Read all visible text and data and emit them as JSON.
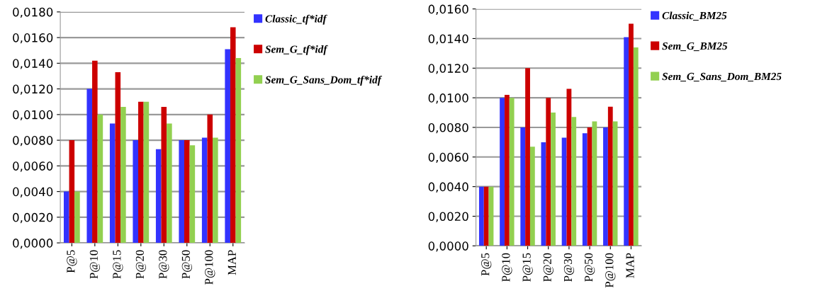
{
  "chart_data": [
    {
      "type": "bar",
      "categories": [
        "P@5",
        "P@10",
        "P@15",
        "P@20",
        "P@30",
        "P@50",
        "P@100",
        "MAP"
      ],
      "series": [
        {
          "name": "Classic_tf*idf",
          "color": "#3333ff",
          "values": [
            0.004,
            0.012,
            0.0093,
            0.008,
            0.0073,
            0.008,
            0.0082,
            0.0151
          ]
        },
        {
          "name": "Sem_G_tf*idf",
          "color": "#cc0000",
          "values": [
            0.008,
            0.0142,
            0.0133,
            0.011,
            0.0106,
            0.008,
            0.01,
            0.0168
          ]
        },
        {
          "name": "Sem_G_Sans_Dom_tf*idf",
          "color": "#92d050",
          "values": [
            0.004,
            0.01,
            0.0106,
            0.011,
            0.0093,
            0.0076,
            0.0082,
            0.0144
          ]
        }
      ],
      "ylim": [
        0,
        0.018
      ],
      "yticks": [
        {
          "value": 0,
          "label": "0,0000"
        },
        {
          "value": 0.002,
          "label": "0,0020"
        },
        {
          "value": 0.004,
          "label": "0,0040"
        },
        {
          "value": 0.006,
          "label": "0,0060"
        },
        {
          "value": 0.008,
          "label": "0,0080"
        },
        {
          "value": 0.01,
          "label": "0,0100"
        },
        {
          "value": 0.012,
          "label": "0,0120"
        },
        {
          "value": 0.014,
          "label": "0,0140"
        },
        {
          "value": 0.016,
          "label": "0,0160"
        },
        {
          "value": 0.018,
          "label": "0,0180"
        }
      ],
      "grid": "y",
      "legend": "top right"
    },
    {
      "type": "bar",
      "categories": [
        "P@5",
        "P@10",
        "P@15",
        "P@20",
        "P@30",
        "P@50",
        "P@100",
        "MAP"
      ],
      "series": [
        {
          "name": "Classic_BM25",
          "color": "#3333ff",
          "values": [
            0.004,
            0.01,
            0.008,
            0.007,
            0.0073,
            0.0076,
            0.008,
            0.0141
          ]
        },
        {
          "name": "Sem_G_BM25",
          "color": "#cc0000",
          "values": [
            0.004,
            0.0102,
            0.012,
            0.01,
            0.0106,
            0.008,
            0.0094,
            0.015
          ]
        },
        {
          "name": "Sem_G_Sans_Dom_BM25",
          "color": "#92d050",
          "values": [
            0.004,
            0.01,
            0.0067,
            0.009,
            0.0087,
            0.0084,
            0.0084,
            0.0134
          ]
        }
      ],
      "ylim": [
        0,
        0.016
      ],
      "yticks": [
        {
          "value": 0,
          "label": "0,0000"
        },
        {
          "value": 0.002,
          "label": "0,0020"
        },
        {
          "value": 0.004,
          "label": "0,0040"
        },
        {
          "value": 0.006,
          "label": "0,0060"
        },
        {
          "value": 0.008,
          "label": "0,0080"
        },
        {
          "value": 0.01,
          "label": "0,0100"
        },
        {
          "value": 0.012,
          "label": "0,0120"
        },
        {
          "value": 0.014,
          "label": "0,0140"
        },
        {
          "value": 0.016,
          "label": "0,0160"
        }
      ],
      "grid": "y",
      "legend": "top right"
    }
  ]
}
